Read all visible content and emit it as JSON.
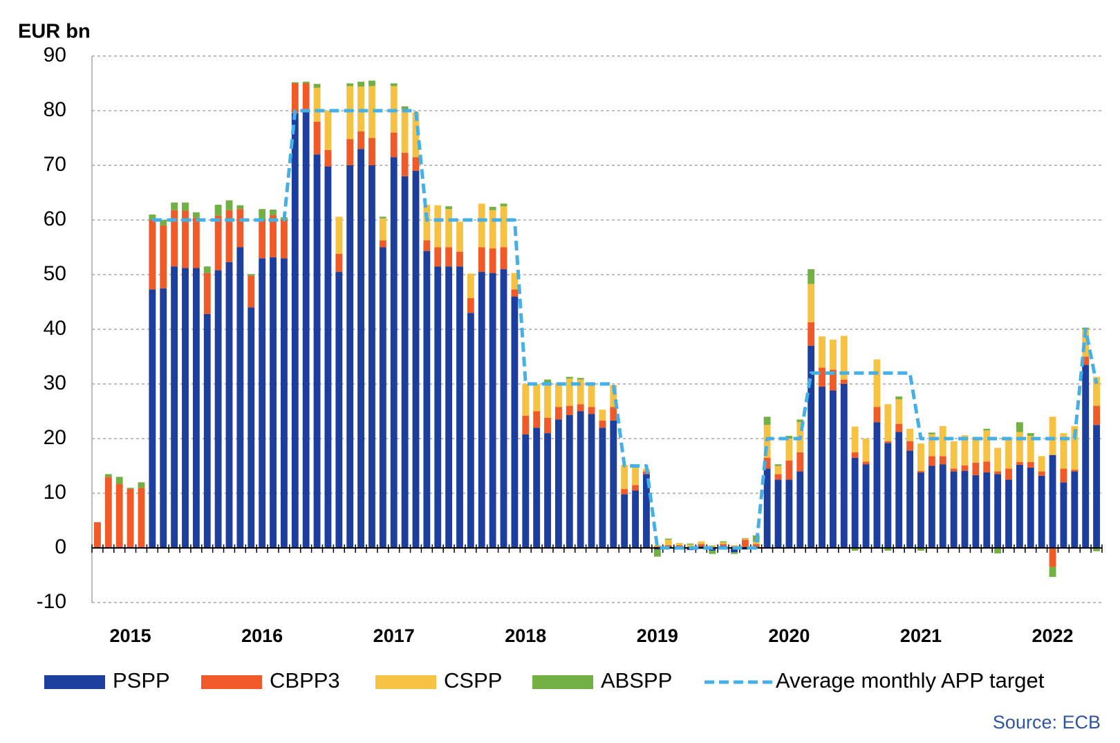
{
  "chart_data": {
    "type": "bar",
    "stacked": true,
    "y_label": "EUR bn",
    "source": "Source: ECB",
    "legend": "bottom",
    "grid": true,
    "ylim": [
      -10,
      90
    ],
    "yticks": [
      -10,
      0,
      10,
      20,
      30,
      40,
      50,
      60,
      70,
      80,
      90
    ],
    "categories": [
      null,
      null,
      null,
      "2015",
      null,
      null,
      null,
      null,
      null,
      null,
      null,
      null,
      null,
      null,
      null,
      "2016",
      null,
      null,
      null,
      null,
      null,
      null,
      null,
      null,
      null,
      null,
      null,
      "2017",
      null,
      null,
      null,
      null,
      null,
      null,
      null,
      null,
      null,
      null,
      null,
      "2018",
      null,
      null,
      null,
      null,
      null,
      null,
      null,
      null,
      null,
      null,
      null,
      "2019",
      null,
      null,
      null,
      null,
      null,
      null,
      null,
      null,
      null,
      null,
      null,
      "2020",
      null,
      null,
      null,
      null,
      null,
      null,
      null,
      null,
      null,
      null,
      null,
      "2021",
      null,
      null,
      null,
      null,
      null,
      null,
      null,
      null,
      null,
      null,
      null,
      "2022",
      null,
      null,
      null,
      null
    ],
    "series": [
      {
        "name": "PSPP",
        "color": "#1c3f9e",
        "values": [
          0,
          0,
          0,
          0,
          0,
          47.3,
          47.5,
          51.5,
          51.2,
          51.2,
          42.8,
          50.8,
          52.3,
          55,
          44,
          53,
          53.2,
          53,
          79.5,
          80,
          72,
          69.8,
          50.5,
          70,
          73,
          70,
          55,
          71.5,
          68,
          69,
          54.3,
          51.5,
          51.5,
          51.5,
          43,
          50.5,
          50.3,
          51,
          46,
          20.8,
          22,
          21,
          23.5,
          24.3,
          25,
          24.5,
          22,
          23.3,
          9.8,
          10.5,
          13.5,
          -0.3,
          0.3,
          0.2,
          -0.4,
          0.3,
          -0.5,
          0.4,
          -0.8,
          -0.3,
          0.2,
          14.5,
          12.5,
          12.5,
          14,
          37,
          29.5,
          28.8,
          30,
          16.5,
          15.3,
          23,
          19.2,
          21.2,
          17.8,
          13.8,
          15,
          15.3,
          14,
          14.1,
          13.3,
          13.8,
          13.5,
          12.5,
          15.2,
          14.7,
          13.2,
          17,
          12,
          14,
          33.5,
          22.5
        ]
      },
      {
        "name": "CBPP3",
        "color": "#f05a28",
        "values": [
          4.7,
          13,
          11.7,
          10.8,
          11,
          12.7,
          11.5,
          10.3,
          10.5,
          9.2,
          7.5,
          10,
          9.5,
          7,
          5.8,
          7,
          7.7,
          7,
          5.5,
          5,
          6,
          3,
          3.3,
          4.8,
          3.2,
          5,
          1.3,
          4.5,
          4.3,
          2.5,
          2,
          3.5,
          3.5,
          2.7,
          2.7,
          4.5,
          4.5,
          4,
          1.3,
          3.4,
          3,
          2.8,
          2.3,
          1.7,
          1.3,
          1.3,
          1.3,
          2.5,
          1,
          1,
          0.5,
          0.3,
          0.2,
          0.3,
          0.3,
          0.4,
          0.2,
          0.3,
          0.3,
          1.5,
          0.5,
          2,
          1,
          3.5,
          3.5,
          4.3,
          3.5,
          3.8,
          0.8,
          1,
          0.5,
          2.8,
          0.3,
          1.5,
          1.7,
          0.3,
          1.8,
          1.5,
          0.5,
          1,
          2.3,
          2,
          0.5,
          2,
          0.5,
          1,
          0.8,
          -3.5,
          2.5,
          0.3,
          1.5,
          3.5
        ]
      },
      {
        "name": "CSPP",
        "color": "#f6c244",
        "values": [
          0,
          0,
          0,
          0,
          0,
          0,
          0,
          0,
          0,
          0,
          0,
          0,
          0,
          0,
          0,
          0,
          0,
          0,
          0,
          0,
          6.2,
          7.2,
          6.8,
          9.7,
          8.2,
          9.5,
          4,
          8.5,
          8,
          8.2,
          6.5,
          7.7,
          7,
          5.5,
          4.5,
          8,
          7,
          7.5,
          3,
          5.8,
          5,
          6.5,
          4.3,
          5,
          4.5,
          4.3,
          2,
          4,
          4.4,
          3.2,
          0.5,
          0.2,
          1,
          0.4,
          0.3,
          0.5,
          0.3,
          0.3,
          0.2,
          0.2,
          0.4,
          6,
          1.5,
          4,
          5.5,
          7,
          5.7,
          5.5,
          8,
          4.7,
          4.2,
          8.7,
          6.8,
          4.5,
          2.3,
          5,
          4,
          5.5,
          5,
          5.5,
          4.7,
          5.7,
          4.3,
          5.5,
          5.5,
          4.8,
          2.8,
          7,
          6.5,
          8,
          5,
          5.3
        ]
      },
      {
        "name": "ABSPP",
        "color": "#72b043",
        "values": [
          0,
          0.5,
          1.3,
          0.2,
          1,
          1,
          1,
          1.4,
          1.5,
          1,
          1.2,
          2,
          1.8,
          0.7,
          0.3,
          2,
          1,
          0.5,
          0.2,
          0.3,
          0.7,
          0,
          0,
          0.5,
          0.9,
          1,
          0.3,
          0.5,
          0.5,
          0,
          0,
          0,
          0.5,
          0,
          0,
          0,
          0.6,
          0.5,
          0,
          0,
          0,
          0.5,
          0,
          0.3,
          0.3,
          0,
          0,
          0,
          0,
          0,
          0,
          -1.3,
          0.2,
          -0.3,
          0.2,
          -0.2,
          -0.6,
          0.2,
          -0.3,
          0.1,
          1.2,
          1.5,
          0.3,
          0.5,
          0.5,
          2.7,
          0,
          0,
          0,
          -0.5,
          0,
          0,
          -0.5,
          0.5,
          0,
          -0.5,
          0.3,
          0,
          0,
          0,
          0,
          0.3,
          -1,
          0,
          1.8,
          0.5,
          0,
          -1.8,
          0,
          0,
          0.3,
          -0.6
        ]
      },
      {
        "name": "Average monthly APP target",
        "color": "#45b0e6",
        "type": "line",
        "dashed": true,
        "values": [
          null,
          null,
          null,
          null,
          null,
          60,
          60,
          60,
          60,
          60,
          60,
          60,
          60,
          60,
          60,
          60,
          60,
          60,
          80,
          80,
          80,
          80,
          80,
          80,
          80,
          80,
          80,
          80,
          80,
          80,
          60,
          60,
          60,
          60,
          60,
          60,
          60,
          60,
          60,
          30,
          30,
          30,
          30,
          30,
          30,
          30,
          30,
          30,
          15,
          15,
          15,
          0,
          0,
          0,
          0,
          0,
          0,
          0,
          0,
          0,
          0,
          20,
          20,
          20,
          20,
          32,
          32,
          32,
          32,
          32,
          32,
          32,
          32,
          32,
          32,
          20,
          20,
          20,
          20,
          20,
          20,
          20,
          20,
          20,
          20,
          20,
          20,
          20,
          20,
          20,
          40,
          30
        ]
      }
    ]
  }
}
